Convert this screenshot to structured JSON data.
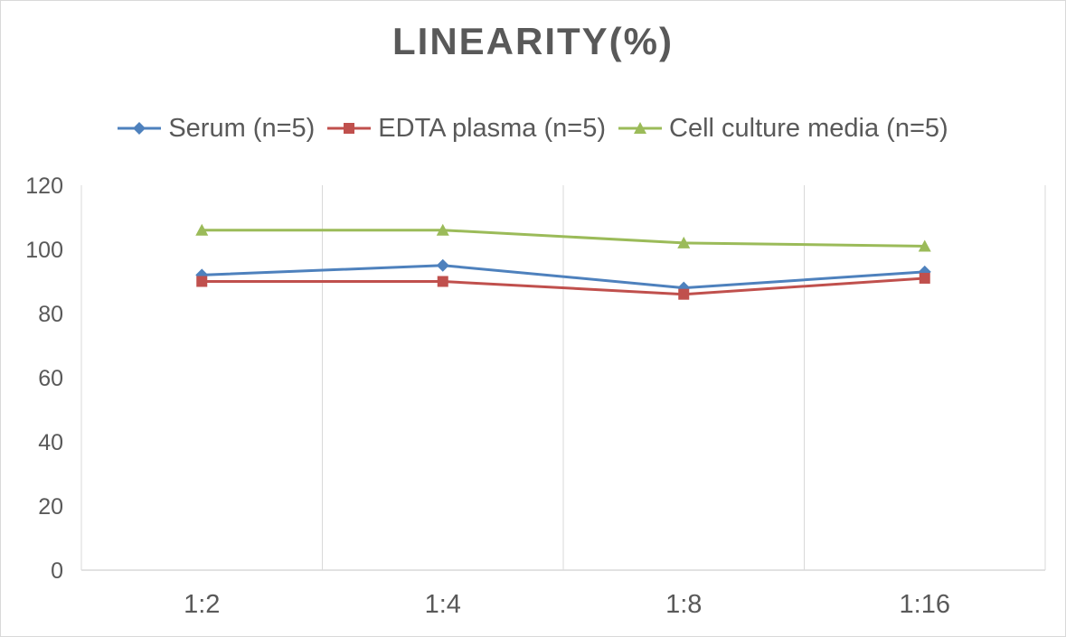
{
  "chart_data": {
    "type": "line",
    "title": "LINEARITY(%)",
    "xlabel": "",
    "ylabel": "",
    "categories": [
      "1:2",
      "1:4",
      "1:8",
      "1:16"
    ],
    "ylim": [
      0,
      120
    ],
    "yticks": [
      0,
      20,
      40,
      60,
      80,
      100,
      120
    ],
    "grid": "vertical",
    "legend_position": "top",
    "series": [
      {
        "name": "Serum (n=5)",
        "values": [
          92,
          95,
          88,
          93
        ],
        "color": "#4e81bd",
        "marker": "diamond"
      },
      {
        "name": "EDTA plasma (n=5)",
        "values": [
          90,
          90,
          86,
          91
        ],
        "color": "#c0504d",
        "marker": "square"
      },
      {
        "name": "Cell culture media (n=5)",
        "values": [
          106,
          106,
          102,
          101
        ],
        "color": "#9bbb59",
        "marker": "triangle"
      }
    ]
  }
}
